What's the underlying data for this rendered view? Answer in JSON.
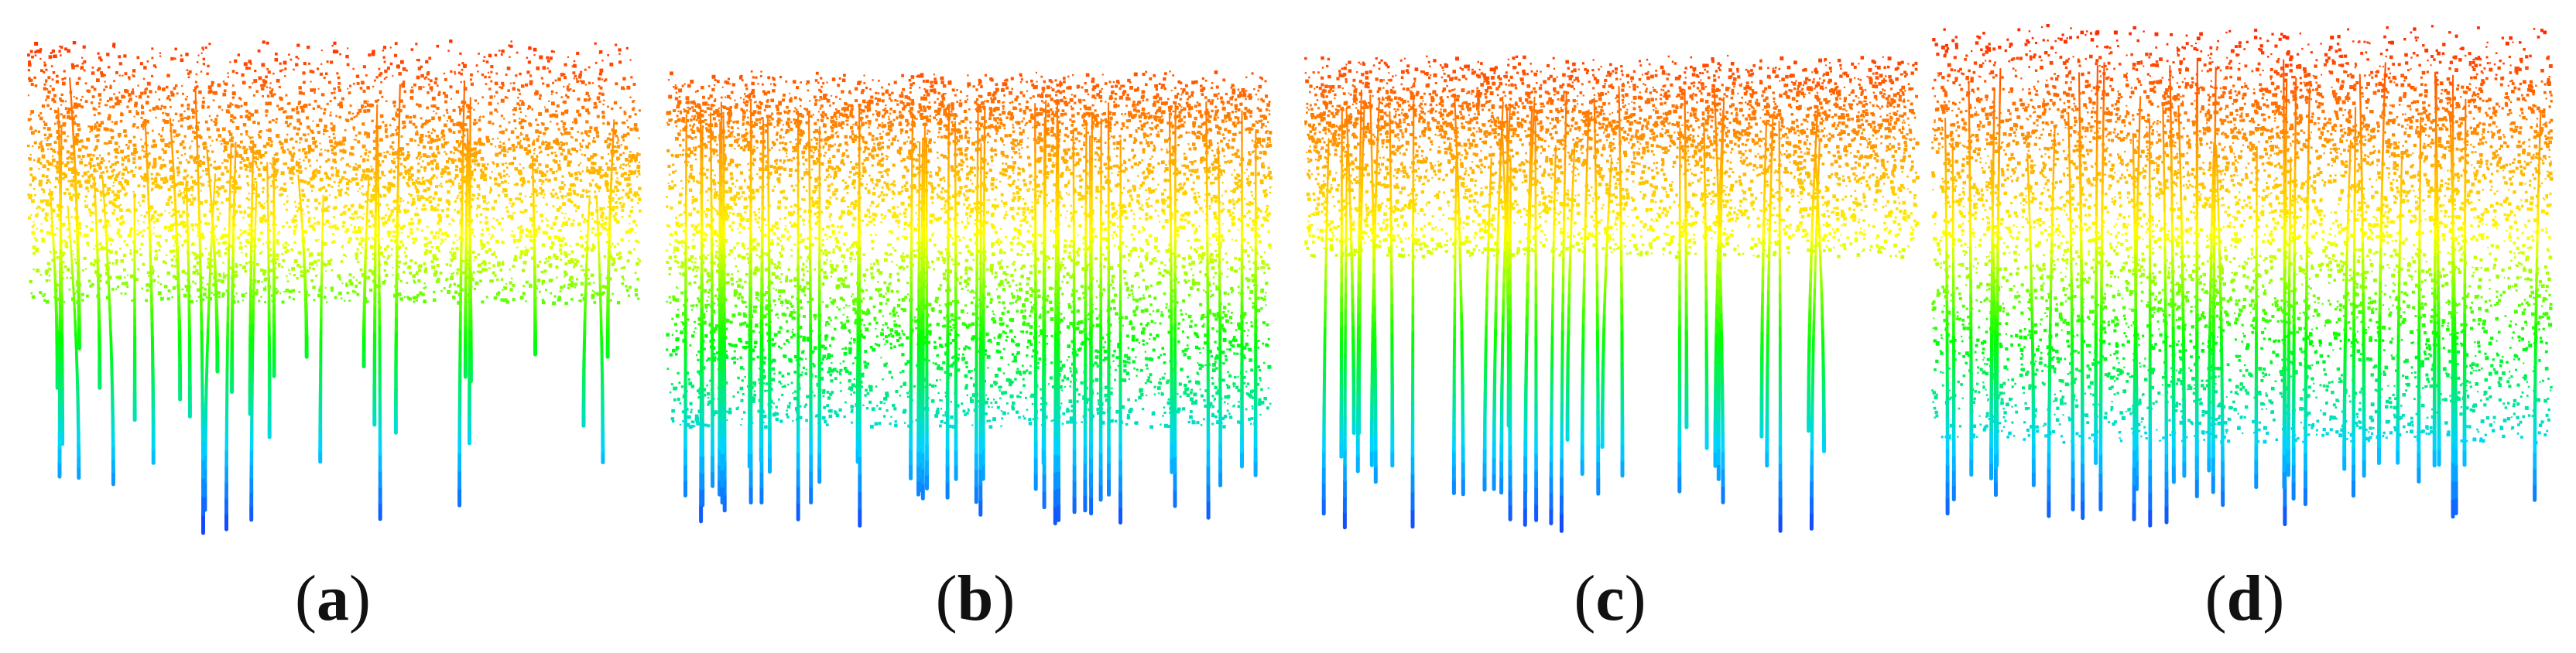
{
  "figure": {
    "panels": [
      {
        "id": "a",
        "label": "a",
        "caption_open": "(",
        "caption_close": ")"
      },
      {
        "id": "b",
        "label": "b",
        "caption_open": "(",
        "caption_close": ")"
      },
      {
        "id": "c",
        "label": "c",
        "caption_open": "(",
        "caption_close": ")"
      },
      {
        "id": "d",
        "label": "d",
        "caption_open": "(",
        "caption_close": ")"
      }
    ],
    "colormap": [
      "#1a1aff",
      "#00d4ff",
      "#00ff00",
      "#ffff00",
      "#ff8800",
      "#ff2200"
    ],
    "background": "#ffffff"
  }
}
